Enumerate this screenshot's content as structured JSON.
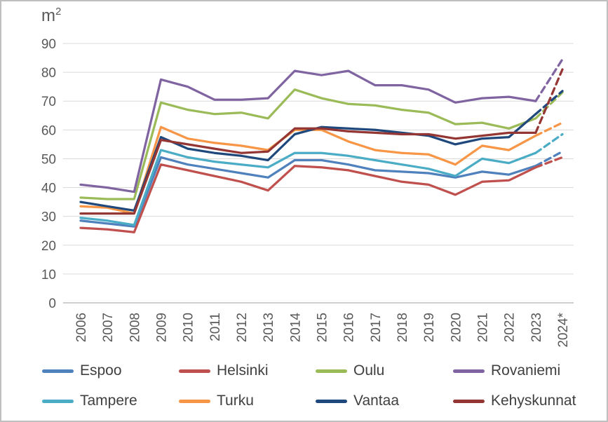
{
  "unit_label": {
    "base": "m",
    "exponent": "2"
  },
  "chart_data": {
    "type": "line",
    "title": "",
    "ylabel": "m2",
    "xlabel": "",
    "ylim": [
      0,
      90
    ],
    "yticks": [
      0,
      10,
      20,
      30,
      40,
      50,
      60,
      70,
      80,
      90
    ],
    "grid": true,
    "legend_position": "bottom",
    "last_segment_dashed": true,
    "x": [
      "2006",
      "2007",
      "2008",
      "2009",
      "2010",
      "2011",
      "2012",
      "2013",
      "2014",
      "2015",
      "2016",
      "2017",
      "2018",
      "2019",
      "2020",
      "2021",
      "2022",
      "2023",
      "2024*"
    ],
    "series": [
      {
        "name": "Espoo",
        "color": "#4F81BD",
        "values": [
          28.5,
          27.5,
          26.5,
          50.5,
          48,
          46.5,
          45,
          43.5,
          49.5,
          49.5,
          48,
          46,
          45.5,
          45,
          43.5,
          45.5,
          44.5,
          47.5,
          52.5
        ]
      },
      {
        "name": "Helsinki",
        "color": "#C0504D",
        "values": [
          26,
          25.5,
          24.5,
          48,
          46,
          44,
          42,
          39,
          47.5,
          47,
          46,
          44,
          42,
          41,
          37.5,
          42,
          42.5,
          47,
          50.5
        ]
      },
      {
        "name": "Oulu",
        "color": "#9BBB59",
        "values": [
          36.5,
          36,
          36,
          69.5,
          67,
          65.5,
          66,
          64,
          74,
          71,
          69,
          68.5,
          67,
          66,
          62,
          62.5,
          60.5,
          64,
          73
        ]
      },
      {
        "name": "Rovaniemi",
        "color": "#8064A2",
        "values": [
          41,
          40,
          38.5,
          77.5,
          75,
          70.5,
          70.5,
          71,
          80.5,
          79,
          80.5,
          75.5,
          75.5,
          74,
          69.5,
          71,
          71.5,
          70,
          84.5
        ]
      },
      {
        "name": "Tampere",
        "color": "#4BACC6",
        "values": [
          29.5,
          28.5,
          27,
          53,
          50.5,
          49,
          48,
          47,
          52,
          52,
          51,
          49.5,
          48,
          46.5,
          44,
          50,
          48.5,
          52,
          58.5
        ]
      },
      {
        "name": "Turku",
        "color": "#F79646",
        "values": [
          33.5,
          33,
          31,
          61,
          57,
          55.5,
          54.5,
          53,
          60,
          60,
          56,
          53,
          52,
          51.5,
          48,
          54.5,
          53,
          58,
          62.5
        ]
      },
      {
        "name": "Vantaa",
        "color": "#1F497D",
        "values": [
          35,
          33.5,
          32,
          57.5,
          53.5,
          52,
          51,
          49.5,
          58.5,
          61,
          60.5,
          60,
          59,
          58,
          55,
          57,
          57.5,
          65.5,
          73.5
        ]
      },
      {
        "name": "Kehyskunnat",
        "color": "#943634",
        "values": [
          31,
          31,
          31,
          56.5,
          55,
          53.5,
          52,
          52.5,
          60.5,
          60.5,
          59.5,
          59,
          58.5,
          58.5,
          57,
          58,
          59,
          59,
          81
        ]
      }
    ]
  },
  "legend": {
    "rows": [
      [
        "Espoo",
        "Helsinki",
        "Oulu",
        "Rovaniemi"
      ],
      [
        "Tampere",
        "Turku",
        "Vantaa",
        "Kehyskunnat"
      ]
    ]
  },
  "colors": {
    "text": "#595959",
    "legend_text": "#404040",
    "gridline": "#D9D9D9",
    "axis_line": "#BFBFBF",
    "border": "#BFBFBF"
  }
}
